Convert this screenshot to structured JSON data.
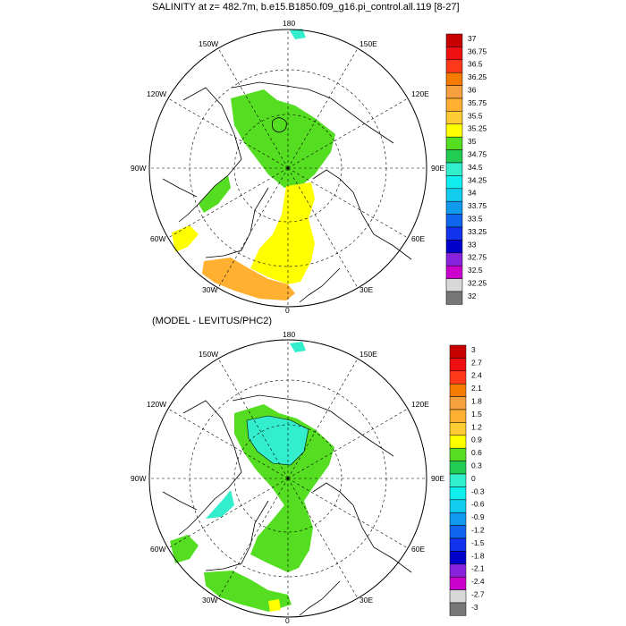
{
  "panels": [
    {
      "title": "SALINITY at z= 482.7m, b.e15.B1850.f09_g16.pi_control.all.119 [8-27]",
      "lon_labels": [
        "180",
        "150E",
        "120E",
        "90E",
        "60E",
        "30E",
        "0",
        "30W",
        "60W",
        "90W",
        "120W",
        "150W"
      ],
      "colorbar": {
        "levels": [
          "37",
          "36.75",
          "36.5",
          "36.25",
          "36",
          "35.75",
          "35.5",
          "35.25",
          "35",
          "34.75",
          "34.5",
          "34.25",
          "34",
          "33.75",
          "33.5",
          "33.25",
          "33",
          "32.75",
          "32.5",
          "32.25",
          "32"
        ],
        "colors": [
          "#c80000",
          "#ee1010",
          "#ff3a1a",
          "#f57a00",
          "#f7a040",
          "#ffb030",
          "#ffcc33",
          "#ffff00",
          "#55dd22",
          "#22cc55",
          "#33eecc",
          "#11eeee",
          "#11ccee",
          "#1199ee",
          "#1166ee",
          "#1133ee",
          "#0000cc",
          "#8822dd",
          "#cc00cc",
          "#d8d8d8",
          "#777777"
        ]
      }
    },
    {
      "title": "(MODEL - LEVITUS/PHC2)",
      "lon_labels": [
        "180",
        "150E",
        "120E",
        "90E",
        "60E",
        "30E",
        "0",
        "30W",
        "60W",
        "90W",
        "120W",
        "150W"
      ],
      "colorbar": {
        "levels": [
          "3",
          "2.7",
          "2.4",
          "2.1",
          "1.8",
          "1.5",
          "1.2",
          "0.9",
          "0.6",
          "0.3",
          "0",
          "-0.3",
          "-0.6",
          "-0.9",
          "-1.2",
          "-1.5",
          "-1.8",
          "-2.1",
          "-2.4",
          "-2.7",
          "-3"
        ],
        "colors": [
          "#c80000",
          "#ee1010",
          "#ff3a1a",
          "#f57a00",
          "#f7a040",
          "#ffb030",
          "#ffcc33",
          "#ffff00",
          "#55dd22",
          "#22cc55",
          "#33eecc",
          "#11eeee",
          "#11ccee",
          "#1199ee",
          "#1166ee",
          "#1133ee",
          "#0000cc",
          "#8822dd",
          "#cc00cc",
          "#d8d8d8",
          "#777777"
        ]
      }
    }
  ],
  "colors": {
    "green": "#55dd22",
    "yellow": "#ffff00",
    "orange": "#ffb030",
    "cyan": "#33eecc",
    "land_line": "#000000"
  }
}
